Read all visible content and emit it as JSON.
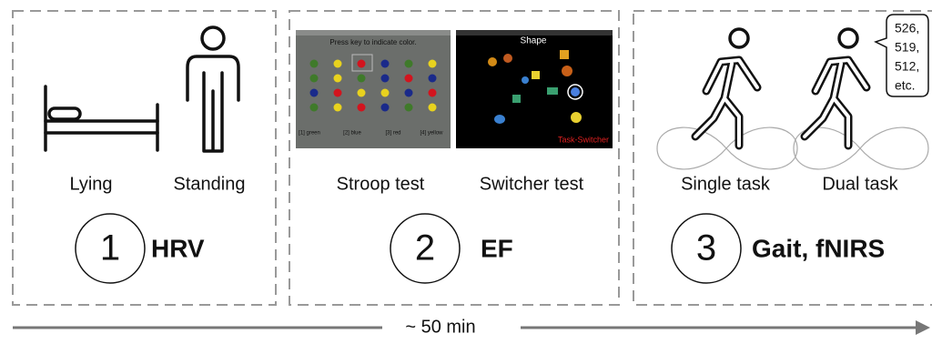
{
  "panels": [
    {
      "items": [
        "Lying",
        "Standing"
      ],
      "number": "1",
      "label": "HRV"
    },
    {
      "items": [
        "Stroop test",
        "Switcher test"
      ],
      "number": "2",
      "label": "EF",
      "stroop": {
        "prompt": "Press key to indicate color.",
        "keys": [
          "[1] green",
          "[2] blue",
          "[3] red",
          "[4] yellow"
        ]
      },
      "switcher": {
        "title": "Shape",
        "footer": "Task-Switcher"
      }
    },
    {
      "items": [
        "Single task",
        "Dual task"
      ],
      "number": "3",
      "label": "Gait, fNIRS",
      "bubble": [
        "526,",
        "519,",
        "512,",
        "etc."
      ]
    }
  ],
  "timeline": "~ 50 min"
}
